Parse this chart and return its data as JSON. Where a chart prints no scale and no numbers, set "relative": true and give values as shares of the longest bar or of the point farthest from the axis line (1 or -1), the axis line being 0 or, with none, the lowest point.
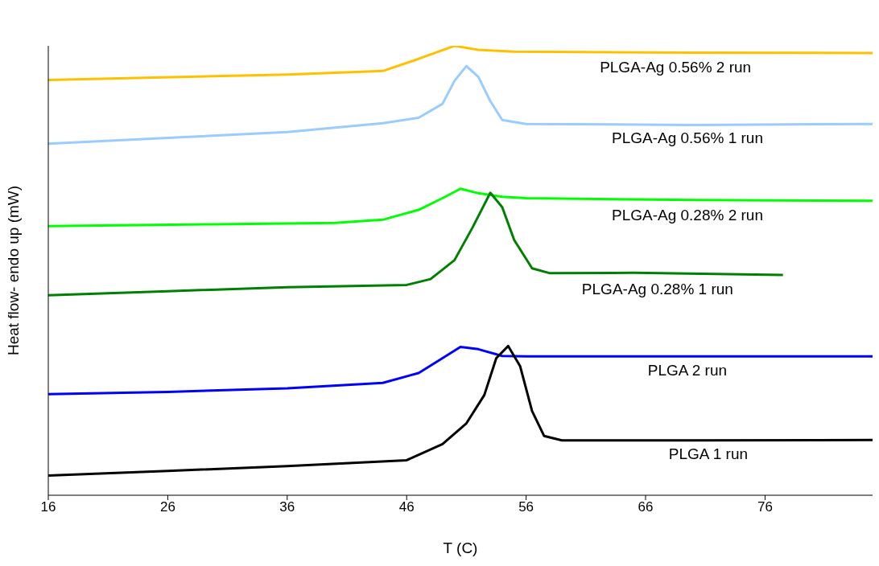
{
  "chart_data": {
    "type": "line",
    "relative": true,
    "xlabel": "T (C)",
    "ylabel": "Heat flow- endo up (mW)",
    "xlim": [
      16,
      85
    ],
    "xticks": [
      16,
      26,
      36,
      46,
      56,
      66,
      76
    ],
    "grid": false,
    "legend": false,
    "marker": "none",
    "line_style": "solid",
    "series": [
      {
        "name": "PLGA-Ag 0.56% 2 run",
        "color": "#ffc000",
        "x": [
          16,
          36,
          40,
          44,
          47,
          50,
          52,
          55,
          70,
          85
        ],
        "values": [
          0.924,
          0.936,
          0.94,
          0.944,
          0.971,
          1,
          0.991,
          0.987,
          0.985,
          0.984
        ]
      },
      {
        "name": "PLGA-Ag 0.56% 1 run",
        "color": "#99ccff",
        "x": [
          16,
          26,
          36,
          44,
          47,
          49,
          50,
          51,
          52,
          53,
          54,
          56,
          70,
          85
        ],
        "values": [
          0.782,
          0.795,
          0.808,
          0.828,
          0.84,
          0.871,
          0.922,
          0.955,
          0.931,
          0.877,
          0.835,
          0.826,
          0.824,
          0.826
        ]
      },
      {
        "name": "PLGA-Ag 0.28% 2 run",
        "color": "#00ff00",
        "x": [
          16,
          30,
          40,
          44,
          47,
          49,
          50.5,
          52,
          54,
          56,
          70,
          85
        ],
        "values": [
          0.599,
          0.603,
          0.606,
          0.613,
          0.635,
          0.661,
          0.682,
          0.672,
          0.664,
          0.661,
          0.657,
          0.655
        ]
      },
      {
        "name": "PLGA-Ag 0.28% 1 run",
        "color": "#008000",
        "x": [
          16,
          26,
          36,
          46,
          48,
          50,
          51.5,
          53,
          54,
          55,
          56.5,
          58,
          65,
          77.5
        ],
        "values": [
          0.445,
          0.454,
          0.463,
          0.468,
          0.481,
          0.523,
          0.595,
          0.673,
          0.641,
          0.568,
          0.505,
          0.494,
          0.495,
          0.49
        ]
      },
      {
        "name": "PLGA 2 run",
        "color": "#0000ff",
        "x": [
          16,
          26,
          36,
          44,
          47,
          49,
          50.5,
          52,
          54,
          56,
          70,
          85
        ],
        "values": [
          0.225,
          0.23,
          0.238,
          0.25,
          0.272,
          0.305,
          0.33,
          0.325,
          0.31,
          0.309,
          0.309,
          0.309
        ]
      },
      {
        "name": "PLGA 1 run",
        "color": "#000000",
        "x": [
          16,
          26,
          36,
          46,
          49,
          51,
          52.5,
          53.5,
          54.5,
          55.5,
          56.5,
          57.5,
          59,
          70,
          85
        ],
        "values": [
          0.044,
          0.054,
          0.065,
          0.078,
          0.114,
          0.16,
          0.223,
          0.305,
          0.332,
          0.287,
          0.187,
          0.132,
          0.122,
          0.122,
          0.123
        ]
      }
    ]
  }
}
